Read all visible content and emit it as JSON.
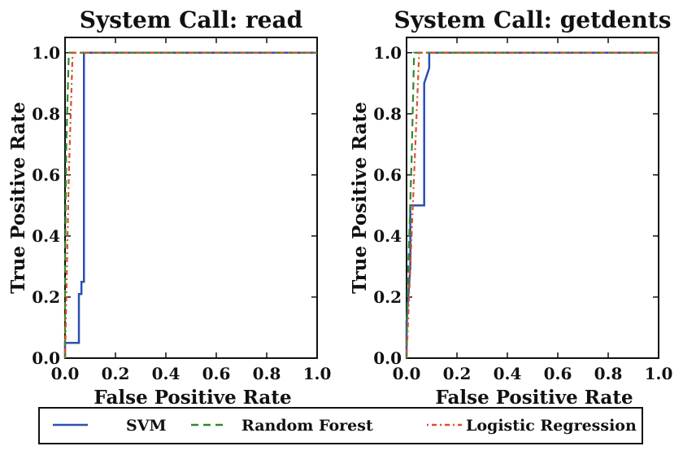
{
  "colors": {
    "svm": "#2b4fb3",
    "random_forest": "#2e8b2e",
    "logistic_regression": "#d9502a"
  },
  "chart_data": [
    {
      "type": "line",
      "title": "System Call: read",
      "xlabel": "False Positive Rate",
      "ylabel": "True Positive Rate",
      "xlim": [
        0,
        1
      ],
      "ylim": [
        0,
        1.05
      ],
      "xticks": [
        "0.0",
        "0.2",
        "0.4",
        "0.6",
        "0.8",
        "1.0"
      ],
      "yticks": [
        "0.0",
        "0.2",
        "0.4",
        "0.6",
        "0.8",
        "1.0"
      ],
      "grid": false,
      "series": [
        {
          "name": "SVM",
          "style": "solid",
          "x": [
            0.0,
            0.0,
            0.055,
            0.055,
            0.065,
            0.065,
            0.075,
            0.075,
            1.0
          ],
          "y": [
            0.0,
            0.05,
            0.05,
            0.21,
            0.21,
            0.25,
            0.25,
            1.0,
            1.0
          ]
        },
        {
          "name": "Random Forest",
          "style": "dashed",
          "x": [
            0.0,
            0.0,
            0.005,
            0.015,
            1.0
          ],
          "y": [
            0.0,
            0.3,
            0.7,
            1.0,
            1.0
          ]
        },
        {
          "name": "Logistic Regression",
          "style": "dashdot",
          "x": [
            0.0,
            0.005,
            0.015,
            0.03,
            1.0
          ],
          "y": [
            0.0,
            0.2,
            0.6,
            1.0,
            1.0
          ]
        }
      ]
    },
    {
      "type": "line",
      "title": "System Call: getdents",
      "xlabel": "False Positive Rate",
      "ylabel": "True Positive Rate",
      "xlim": [
        0,
        1
      ],
      "ylim": [
        0,
        1.05
      ],
      "xticks": [
        "0.0",
        "0.2",
        "0.4",
        "0.6",
        "0.8",
        "1.0"
      ],
      "yticks": [
        "0.0",
        "0.2",
        "0.4",
        "0.6",
        "0.8",
        "1.0"
      ],
      "grid": false,
      "series": [
        {
          "name": "SVM",
          "style": "solid",
          "x": [
            0.0,
            0.0,
            0.015,
            0.015,
            0.07,
            0.07,
            0.09,
            0.09,
            1.0
          ],
          "y": [
            0.0,
            0.12,
            0.3,
            0.5,
            0.5,
            0.9,
            0.95,
            1.0,
            1.0
          ]
        },
        {
          "name": "Random Forest",
          "style": "dashed",
          "x": [
            0.0,
            0.005,
            0.02,
            0.03,
            1.0
          ],
          "y": [
            0.0,
            0.25,
            0.65,
            1.0,
            1.0
          ]
        },
        {
          "name": "Logistic Regression",
          "style": "dashdot",
          "x": [
            0.0,
            0.01,
            0.03,
            0.05,
            1.0
          ],
          "y": [
            0.0,
            0.2,
            0.6,
            1.0,
            1.0
          ]
        }
      ]
    }
  ],
  "legend": {
    "placement": "bottom",
    "items": [
      {
        "label": "SVM",
        "style": "solid",
        "color_key": "svm"
      },
      {
        "label": "Random Forest",
        "style": "dashed",
        "color_key": "random_forest"
      },
      {
        "label": "Logistic Regression",
        "style": "dashdot",
        "color_key": "logistic_regression"
      }
    ]
  }
}
